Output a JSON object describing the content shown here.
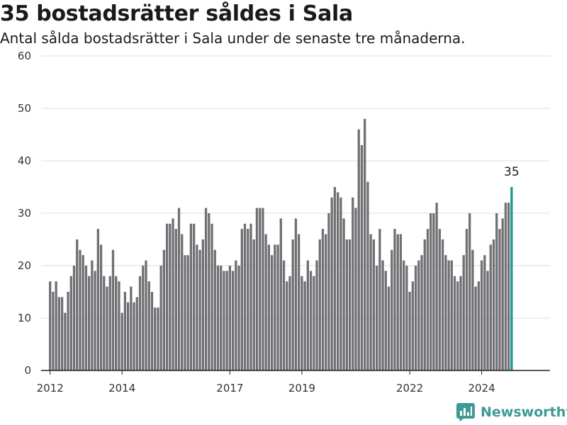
{
  "title": "35 bostadsrätter såldes i Sala",
  "subtitle": "Antal sålda bostadsrätter i Sala under de senaste tre månaderna.",
  "brand": "Newsworthy",
  "colors": {
    "bar": "#707074",
    "highlight": "#1a9a94",
    "grid": "#dcdcdc",
    "axis": "#222222",
    "brand": "#3d9a94"
  },
  "chart_data": {
    "type": "bar",
    "title": "35 bostadsrätter såldes i Sala",
    "subtitle": "Antal sålda bostadsrätter i Sala under de senaste tre månaderna.",
    "xlabel": "",
    "ylabel": "",
    "ylim": [
      0,
      60
    ],
    "yticks": [
      0,
      10,
      20,
      30,
      40,
      50,
      60
    ],
    "xlim": [
      2011.75,
      2025.9
    ],
    "xticks": [
      2012,
      2014,
      2017,
      2019,
      2022,
      2024
    ],
    "grid": true,
    "x_start": 2012.0,
    "x_step_months": 1,
    "values": [
      17,
      15,
      17,
      14,
      14,
      11,
      15,
      18,
      20,
      25,
      23,
      22,
      20,
      18,
      21,
      19,
      27,
      24,
      18,
      16,
      18,
      23,
      18,
      17,
      11,
      15,
      13,
      16,
      13,
      14,
      18,
      20,
      21,
      17,
      15,
      12,
      12,
      20,
      23,
      28,
      28,
      29,
      27,
      31,
      26,
      22,
      22,
      28,
      28,
      24,
      23,
      25,
      31,
      30,
      28,
      23,
      20,
      20,
      19,
      19,
      20,
      19,
      21,
      20,
      27,
      28,
      27,
      28,
      25,
      31,
      31,
      31,
      26,
      24,
      22,
      24,
      24,
      29,
      21,
      17,
      18,
      25,
      29,
      26,
      18,
      17,
      21,
      19,
      18,
      21,
      25,
      27,
      26,
      30,
      33,
      35,
      34,
      33,
      29,
      25,
      25,
      33,
      31,
      46,
      43,
      48,
      36,
      26,
      25,
      20,
      27,
      21,
      19,
      16,
      23,
      27,
      26,
      26,
      21,
      20,
      15,
      17,
      20,
      21,
      22,
      25,
      27,
      30,
      30,
      32,
      27,
      25,
      22,
      21,
      21,
      18,
      17,
      18,
      22,
      27,
      30,
      23,
      16,
      17,
      21,
      22,
      19,
      24,
      25,
      30,
      27,
      29,
      32,
      32,
      35
    ],
    "highlight_index": 154,
    "highlight_label": "35"
  }
}
